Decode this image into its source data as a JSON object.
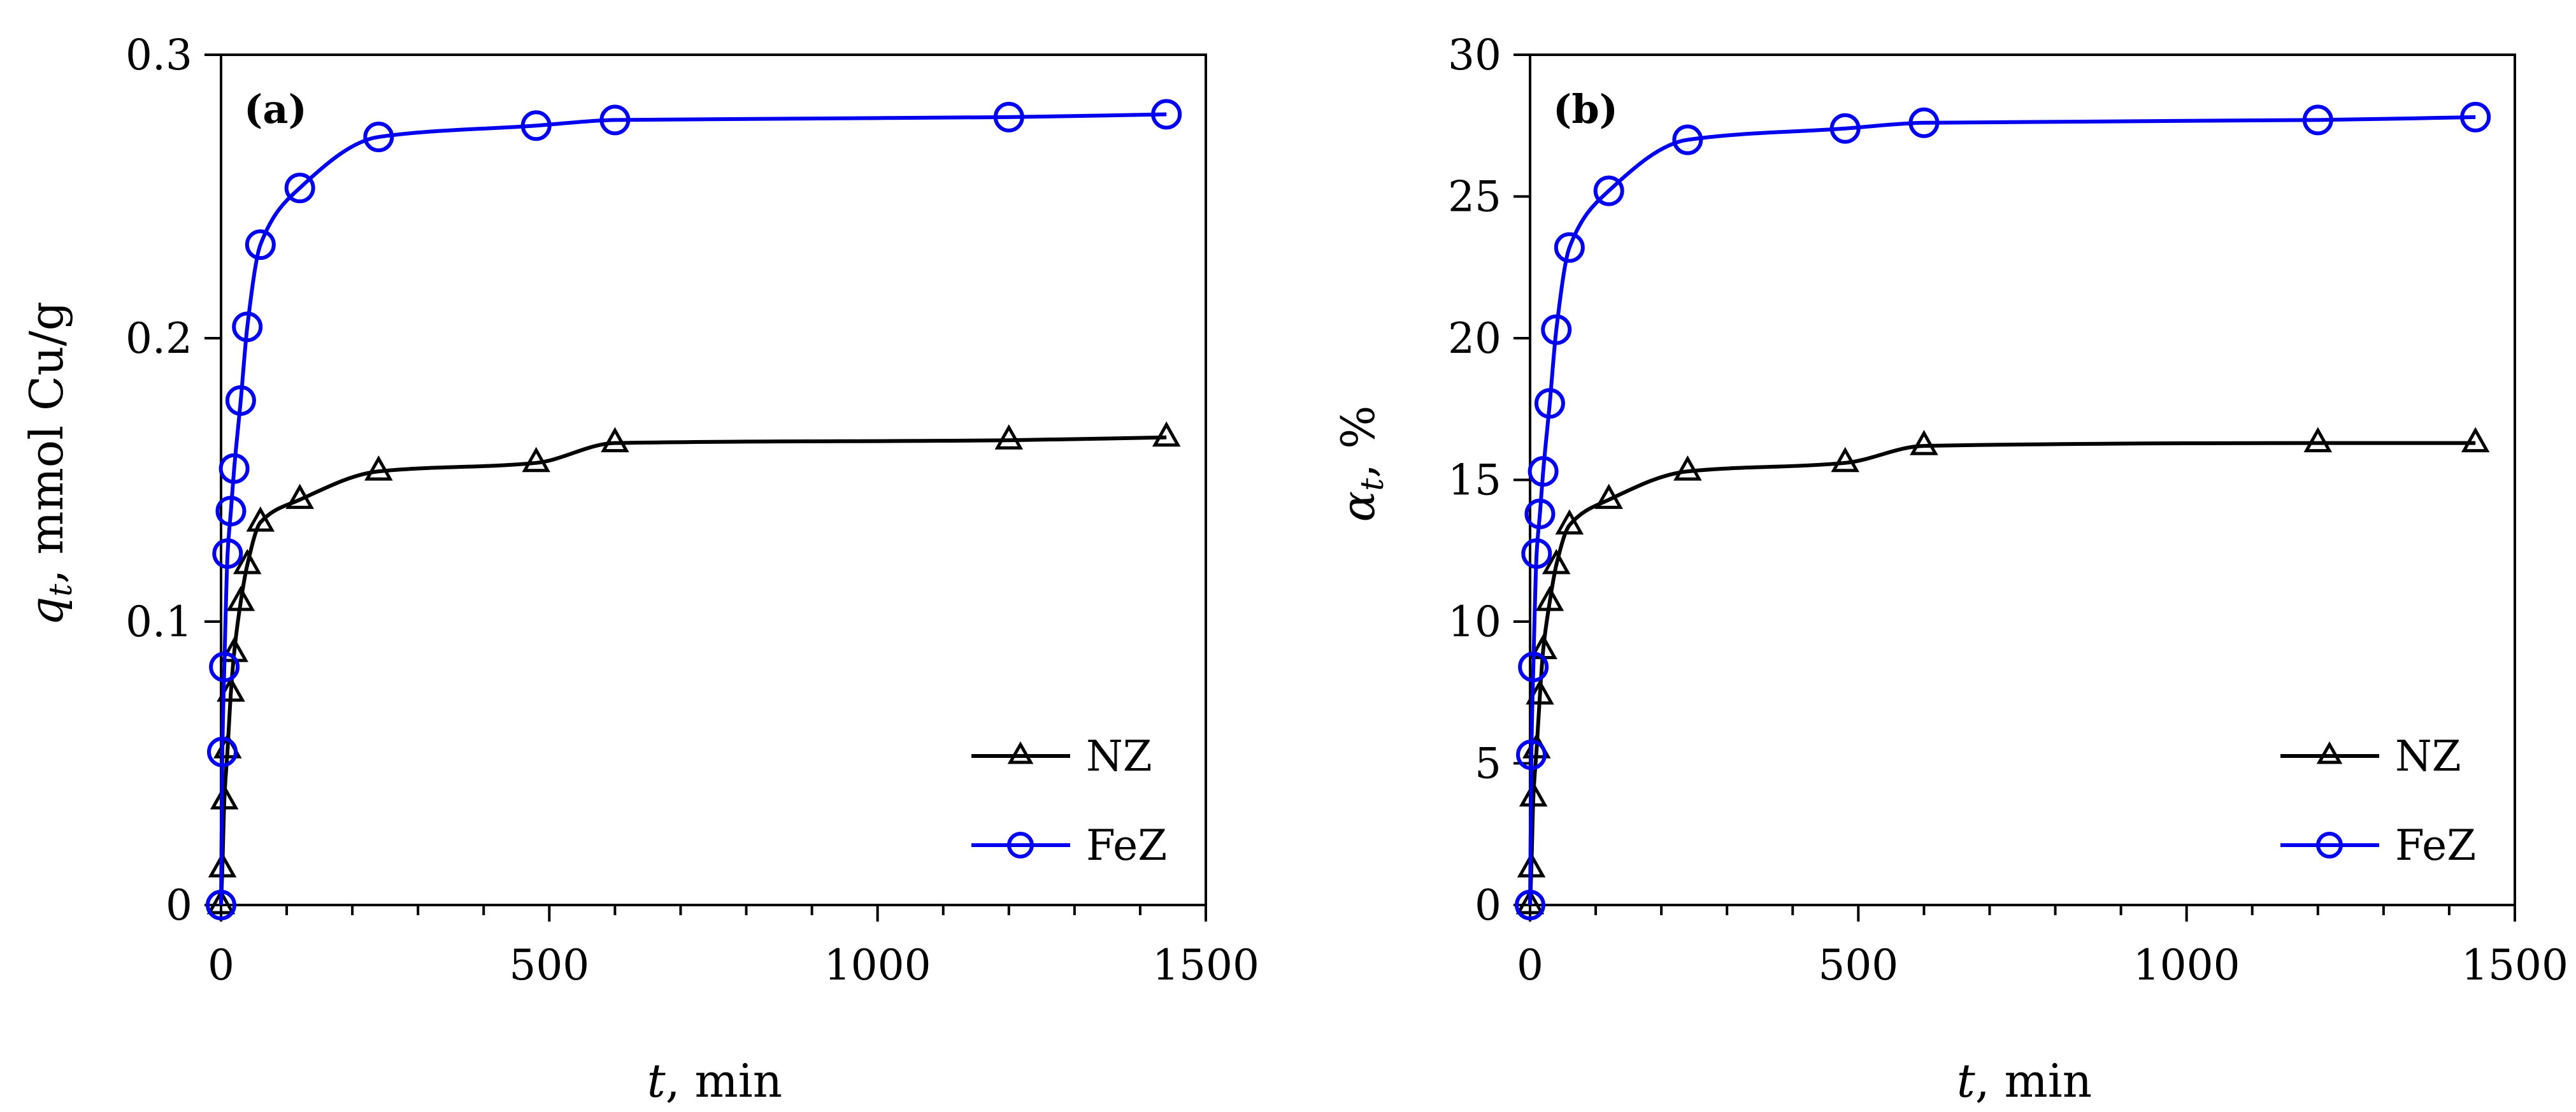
{
  "chart_data": [
    {
      "type": "line",
      "panel_label": "(a)",
      "ylabel_symbol": "q",
      "ylabel_sub": "t",
      "ylabel_rest": ", mmol Cu/g",
      "xlabel_symbol": "t",
      "xlabel_rest": ", min",
      "xlim": [
        0,
        1500
      ],
      "ylim": [
        0,
        0.3
      ],
      "xticks": [
        0,
        500,
        1000,
        1500
      ],
      "xtick_labels": [
        "0",
        "500",
        "1000",
        "1500"
      ],
      "yticks": [
        0,
        0.1,
        0.2,
        0.3
      ],
      "ytick_labels": [
        "0",
        "0.1",
        "0.2",
        "0.3"
      ],
      "legend_position": "bottom-right",
      "grid": false,
      "series": [
        {
          "name": "NZ",
          "marker": "triangle",
          "color": "#000000",
          "x": [
            0,
            2,
            5,
            10,
            15,
            20,
            30,
            40,
            60,
            120,
            240,
            480,
            600,
            1200,
            1440
          ],
          "y": [
            0,
            0.013,
            0.037,
            0.055,
            0.075,
            0.089,
            0.107,
            0.12,
            0.135,
            0.143,
            0.153,
            0.156,
            0.163,
            0.164,
            0.165
          ]
        },
        {
          "name": "FeZ",
          "marker": "circle",
          "color": "#0000ee",
          "x": [
            0,
            2,
            5,
            10,
            15,
            20,
            30,
            40,
            60,
            120,
            240,
            480,
            600,
            1200,
            1440
          ],
          "y": [
            0,
            0.054,
            0.084,
            0.124,
            0.139,
            0.154,
            0.178,
            0.204,
            0.233,
            0.253,
            0.271,
            0.275,
            0.277,
            0.278,
            0.279
          ]
        }
      ]
    },
    {
      "type": "line",
      "panel_label": "(b)",
      "ylabel_symbol": "α",
      "ylabel_sub": "t",
      "ylabel_rest": ", %",
      "xlabel_symbol": "t",
      "xlabel_rest": ", min",
      "xlim": [
        0,
        1500
      ],
      "ylim": [
        0,
        30
      ],
      "xticks": [
        0,
        500,
        1000,
        1500
      ],
      "xtick_labels": [
        "0",
        "500",
        "1000",
        "1500"
      ],
      "yticks": [
        0,
        5,
        10,
        15,
        20,
        25,
        30
      ],
      "ytick_labels": [
        "0",
        "5",
        "10",
        "15",
        "20",
        "25",
        "30"
      ],
      "legend_position": "bottom-right",
      "grid": false,
      "series": [
        {
          "name": "NZ",
          "marker": "triangle",
          "color": "#000000",
          "x": [
            0,
            2,
            5,
            10,
            15,
            20,
            30,
            40,
            60,
            120,
            240,
            480,
            600,
            1200,
            1440
          ],
          "y": [
            0,
            1.3,
            3.8,
            5.5,
            7.4,
            9.0,
            10.7,
            12.0,
            13.4,
            14.3,
            15.3,
            15.6,
            16.2,
            16.3,
            16.3
          ]
        },
        {
          "name": "FeZ",
          "marker": "circle",
          "color": "#0000ee",
          "x": [
            0,
            2,
            5,
            10,
            15,
            20,
            30,
            40,
            60,
            120,
            240,
            480,
            600,
            1200,
            1440
          ],
          "y": [
            0,
            5.3,
            8.4,
            12.4,
            13.8,
            15.3,
            17.7,
            20.3,
            23.2,
            25.2,
            27.0,
            27.4,
            27.6,
            27.7,
            27.8
          ]
        }
      ]
    }
  ]
}
